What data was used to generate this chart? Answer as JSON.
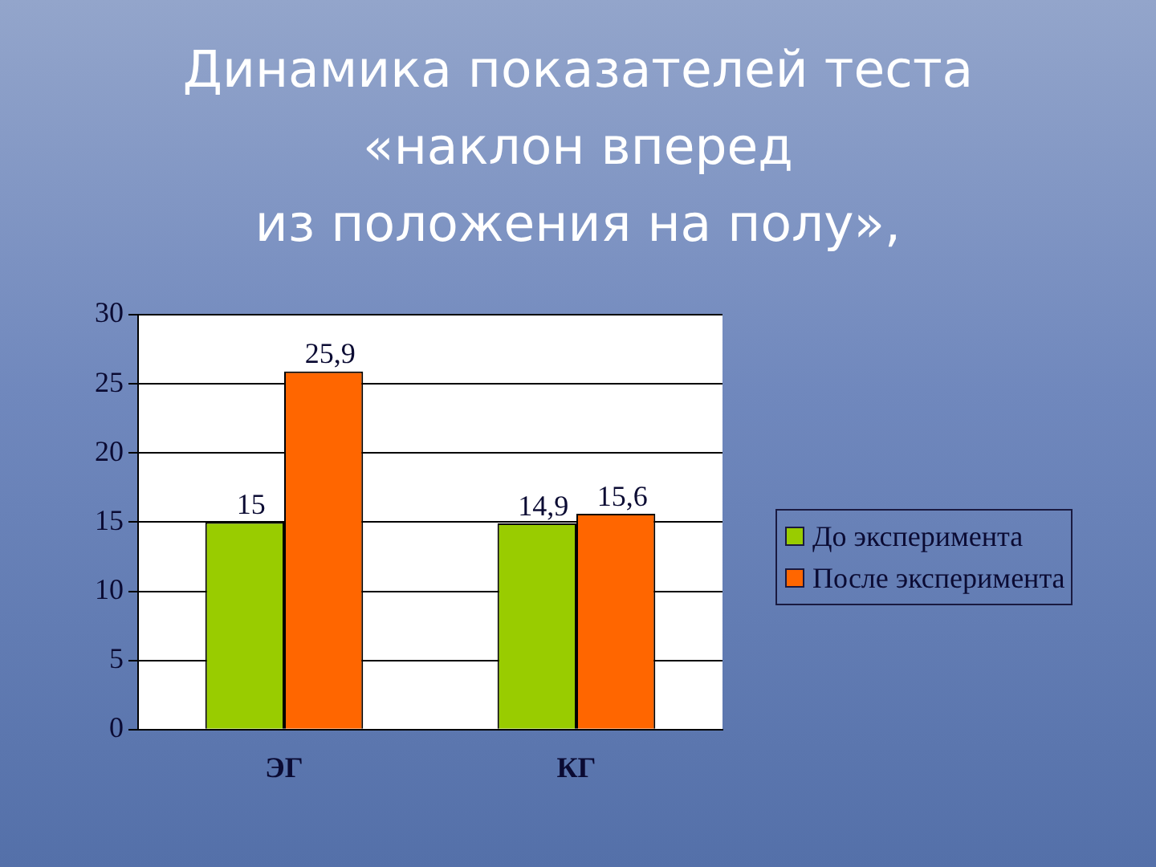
{
  "chart_data": {
    "type": "bar",
    "title": "Динамика показателей теста\n«наклон вперед\nиз положения на полу»,",
    "categories": [
      "ЭГ",
      "КГ"
    ],
    "series": [
      {
        "name": "До эксперимента",
        "color": "#99cc00",
        "values": [
          15,
          14.9
        ],
        "value_labels": [
          "15",
          "14,9"
        ]
      },
      {
        "name": "После эксперимента",
        "color": "#ff6600",
        "values": [
          25.9,
          15.6
        ],
        "value_labels": [
          "25,9",
          "15,6"
        ]
      }
    ],
    "ylim": [
      0,
      30
    ],
    "yticks": [
      0,
      5,
      10,
      15,
      20,
      25,
      30
    ],
    "grid": "y",
    "legend": "right"
  }
}
